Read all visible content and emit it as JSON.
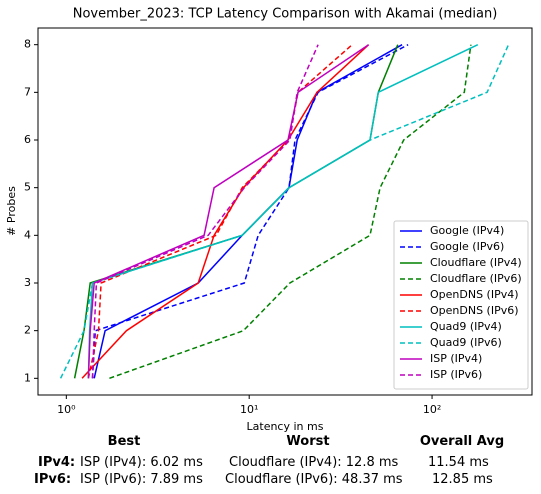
{
  "chart_data": {
    "type": "line",
    "title": "November_2023: TCP Latency Comparison with Akamai (median)",
    "xlabel": "Latency in ms",
    "ylabel": "# Probes",
    "xscale": "log",
    "xlim": [
      0.7,
      352
    ],
    "ylim": [
      0.65,
      8.35
    ],
    "xticks": [
      {
        "value": 1,
        "label": "10⁰"
      },
      {
        "value": 10,
        "label": "10¹"
      },
      {
        "value": 100,
        "label": "10²"
      }
    ],
    "yticks": [
      1,
      2,
      3,
      4,
      5,
      6,
      7,
      8
    ],
    "legend": "lower right",
    "series": [
      {
        "name": "Google (IPv4)",
        "color": "#0000ff",
        "style": "solid",
        "x": [
          1.42,
          1.63,
          5.26,
          9.16,
          16.5,
          18.3,
          23.5,
          68.6
        ],
        "values": [
          1,
          2,
          3,
          4,
          5,
          6,
          7,
          8
        ]
      },
      {
        "name": "Google (IPv6)",
        "color": "#0000ff",
        "style": "dashed",
        "x": [
          1.39,
          1.44,
          9.4,
          11.2,
          16.5,
          17.8,
          23.8,
          74
        ],
        "values": [
          1,
          2,
          3,
          4,
          5,
          6,
          7,
          8
        ]
      },
      {
        "name": "Cloudflare (IPv4)",
        "color": "#008000",
        "style": "solid",
        "x": [
          1.11,
          1.25,
          1.35,
          9.16,
          16.5,
          45.8,
          50.8,
          65
        ],
        "values": [
          1,
          2,
          3,
          4,
          5,
          6,
          7,
          8
        ]
      },
      {
        "name": "Cloudflare (IPv6)",
        "color": "#008000",
        "style": "dashed",
        "x": [
          1.72,
          9.3,
          16.7,
          45.8,
          52,
          70,
          150,
          163
        ],
        "values": [
          1,
          2,
          3,
          4,
          5,
          6,
          7,
          8
        ]
      },
      {
        "name": "OpenDNS (IPv4)",
        "color": "#ff0000",
        "style": "solid",
        "x": [
          1.22,
          2.13,
          5.26,
          6.43,
          9.3,
          16.3,
          23.5,
          45
        ],
        "values": [
          1,
          2,
          3,
          4,
          5,
          6,
          7,
          8
        ]
      },
      {
        "name": "OpenDNS (IPv6)",
        "color": "#ff0000",
        "style": "dashed",
        "x": [
          1.32,
          1.5,
          1.55,
          6.6,
          9.16,
          16.5,
          18.5,
          36.6
        ],
        "values": [
          1,
          2,
          3,
          4,
          5,
          6,
          7,
          8
        ]
      },
      {
        "name": "Quad9 (IPv4)",
        "color": "#00bfbf",
        "style": "solid",
        "x": [
          1.32,
          1.34,
          1.39,
          9.16,
          16.5,
          45.8,
          50.8,
          178
        ],
        "values": [
          1,
          2,
          3,
          4,
          5,
          6,
          7,
          8
        ]
      },
      {
        "name": "Quad9 (IPv6)",
        "color": "#00bfbf",
        "style": "dashed",
        "x": [
          0.93,
          1.25,
          1.39,
          9.16,
          16.5,
          45.8,
          200,
          262
        ],
        "values": [
          1,
          2,
          3,
          4,
          5,
          6,
          7,
          8
        ]
      },
      {
        "name": "ISP (IPv4)",
        "color": "#bf00bf",
        "style": "solid",
        "x": [
          1.32,
          1.35,
          1.42,
          5.67,
          6.43,
          16.3,
          18.5,
          45
        ],
        "values": [
          1,
          2,
          3,
          4,
          5,
          6,
          7,
          8
        ]
      },
      {
        "name": "ISP (IPv6)",
        "color": "#bf00bf",
        "style": "dashed",
        "x": [
          1.39,
          1.42,
          1.46,
          5.97,
          9.4,
          16.7,
          18.3,
          23.8
        ],
        "values": [
          1,
          2,
          3,
          4,
          5,
          6,
          7,
          8
        ]
      }
    ]
  },
  "summary": {
    "headers": [
      "Best",
      "Worst",
      "Overall Avg"
    ],
    "rows": [
      [
        "IPv4:",
        "ISP (IPv4): 6.02 ms",
        "Cloudflare (IPv4): 12.8 ms",
        "11.54 ms"
      ],
      [
        "IPv6:",
        "ISP (IPv6): 7.89 ms",
        "Cloudflare (IPv6): 48.37 ms",
        "12.85 ms"
      ]
    ]
  }
}
